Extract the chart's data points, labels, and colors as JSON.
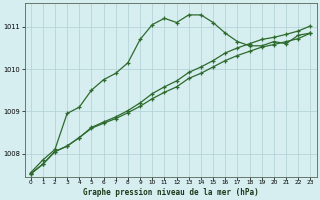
{
  "xlabel": "Graphe pression niveau de la mer (hPa)",
  "bg_color": "#d6eef0",
  "grid_color": "#b0d0d4",
  "line_color": "#2d6a2d",
  "ylim": [
    1007.45,
    1011.55
  ],
  "xlim": [
    -0.5,
    23.5
  ],
  "yticks": [
    1008,
    1009,
    1010,
    1011
  ],
  "xticks": [
    0,
    1,
    2,
    3,
    4,
    5,
    6,
    7,
    8,
    9,
    10,
    11,
    12,
    13,
    14,
    15,
    16,
    17,
    18,
    19,
    20,
    21,
    22,
    23
  ],
  "series1_x": [
    0,
    1,
    2,
    3,
    4,
    5,
    6,
    7,
    8,
    9,
    10,
    11,
    12,
    13,
    14,
    15,
    16,
    17,
    18,
    19,
    20,
    21,
    22,
    23
  ],
  "series1_y": [
    1007.55,
    1007.85,
    1008.1,
    1008.95,
    1009.1,
    1009.5,
    1009.75,
    1009.9,
    1010.15,
    1010.7,
    1011.05,
    1011.2,
    1011.1,
    1011.28,
    1011.28,
    1011.1,
    1010.85,
    1010.65,
    1010.55,
    1010.55,
    1010.65,
    1010.6,
    1010.8,
    1010.85
  ],
  "series2_x": [
    0,
    1,
    2,
    3,
    4,
    5,
    6,
    7,
    8,
    9,
    10,
    11,
    12,
    13,
    14,
    15,
    16,
    17,
    18,
    19,
    20,
    21,
    22,
    23
  ],
  "series2_y": [
    1007.52,
    1007.75,
    1008.05,
    1008.18,
    1008.38,
    1008.62,
    1008.75,
    1008.87,
    1009.02,
    1009.2,
    1009.42,
    1009.58,
    1009.72,
    1009.92,
    1010.05,
    1010.2,
    1010.38,
    1010.5,
    1010.6,
    1010.7,
    1010.75,
    1010.82,
    1010.9,
    1011.02
  ],
  "series3_x": [
    0,
    1,
    2,
    3,
    4,
    5,
    6,
    7,
    8,
    9,
    10,
    11,
    12,
    13,
    14,
    15,
    16,
    17,
    18,
    19,
    20,
    21,
    22,
    23
  ],
  "series3_y": [
    1007.52,
    1007.75,
    1008.05,
    1008.18,
    1008.38,
    1008.6,
    1008.72,
    1008.83,
    1008.97,
    1009.12,
    1009.3,
    1009.45,
    1009.58,
    1009.78,
    1009.9,
    1010.05,
    1010.2,
    1010.32,
    1010.42,
    1010.52,
    1010.58,
    1010.65,
    1010.72,
    1010.85
  ]
}
